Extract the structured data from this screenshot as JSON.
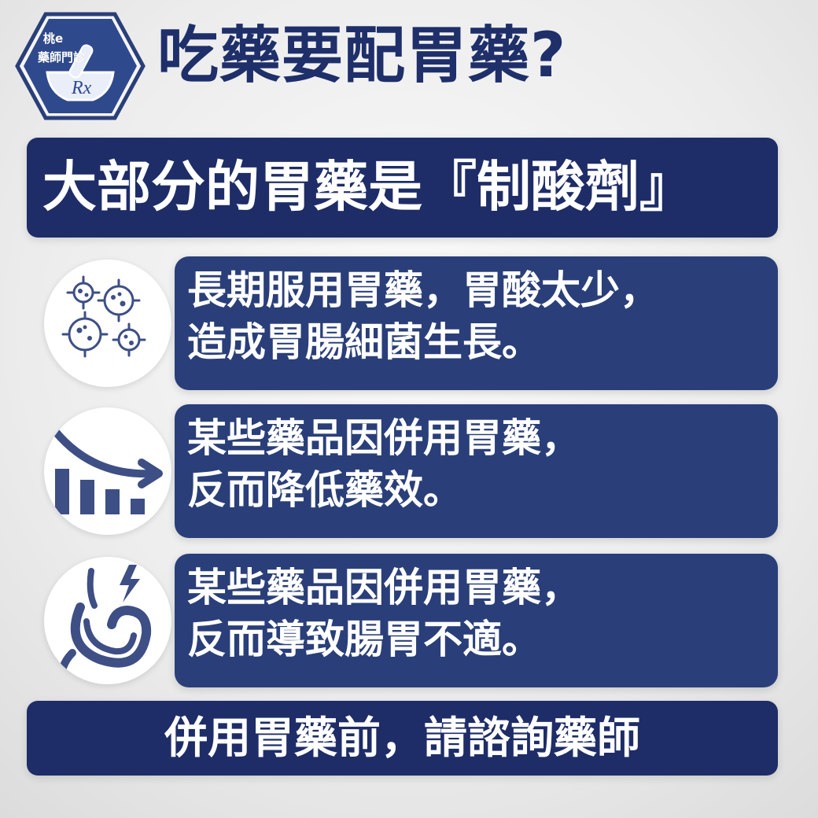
{
  "logo": {
    "brand": "桃e",
    "subtitle": "藥師門診",
    "symbol": "Rx",
    "icon": "mortar-pestle-icon"
  },
  "header": {
    "title": "吃藥要配胃藥?"
  },
  "top_banner": {
    "text": "大部分的胃藥是『制酸劑』"
  },
  "tips": [
    {
      "icon": "bacteria-icon",
      "lines": [
        "長期服用胃藥，胃酸太少，",
        "造成胃腸細菌生長。"
      ]
    },
    {
      "icon": "declining-chart-icon",
      "lines": [
        "某些藥品因併用胃藥，",
        "反而降低藥效。"
      ]
    },
    {
      "icon": "stomach-pain-icon",
      "lines": [
        "某些藥品因併用胃藥，",
        "反而導致腸胃不適。"
      ]
    }
  ],
  "bottom_banner": {
    "text": "併用胃藥前，請諮詢藥師"
  },
  "colors": {
    "navy_banner": "#1e2d67",
    "card_blue": "#2a3f79",
    "title_text": "#1e2f6a",
    "icon_fill": "#3e4f85"
  }
}
